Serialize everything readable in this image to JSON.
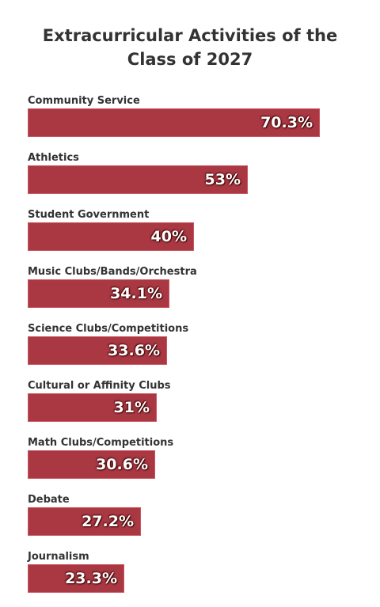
{
  "title": "Extracurricular Activities of the Class of 2027",
  "colors": {
    "bar": "#a93843",
    "text": "#333333",
    "value_text": "#ffffff"
  },
  "chart_data": {
    "type": "bar",
    "orientation": "horizontal",
    "title": "Extracurricular Activities of the Class of 2027",
    "xlabel": "",
    "ylabel": "",
    "categories": [
      "Community Service",
      "Athletics",
      "Student Government",
      "Music Clubs/Bands/Orchestra",
      "Science Clubs/Competitions",
      "Cultural or Affinity Clubs",
      "Math Clubs/Competitions",
      "Debate",
      "Journalism"
    ],
    "values": [
      70.3,
      53,
      40,
      34.1,
      33.6,
      31,
      30.6,
      27.2,
      23.3
    ],
    "value_labels": [
      "70.3%",
      "53%",
      "40%",
      "34.1%",
      "33.6%",
      "31%",
      "30.6%",
      "27.2%",
      "23.3%"
    ],
    "unit": "%",
    "xlim": [
      0,
      100
    ],
    "grid": false,
    "legend": "none"
  }
}
